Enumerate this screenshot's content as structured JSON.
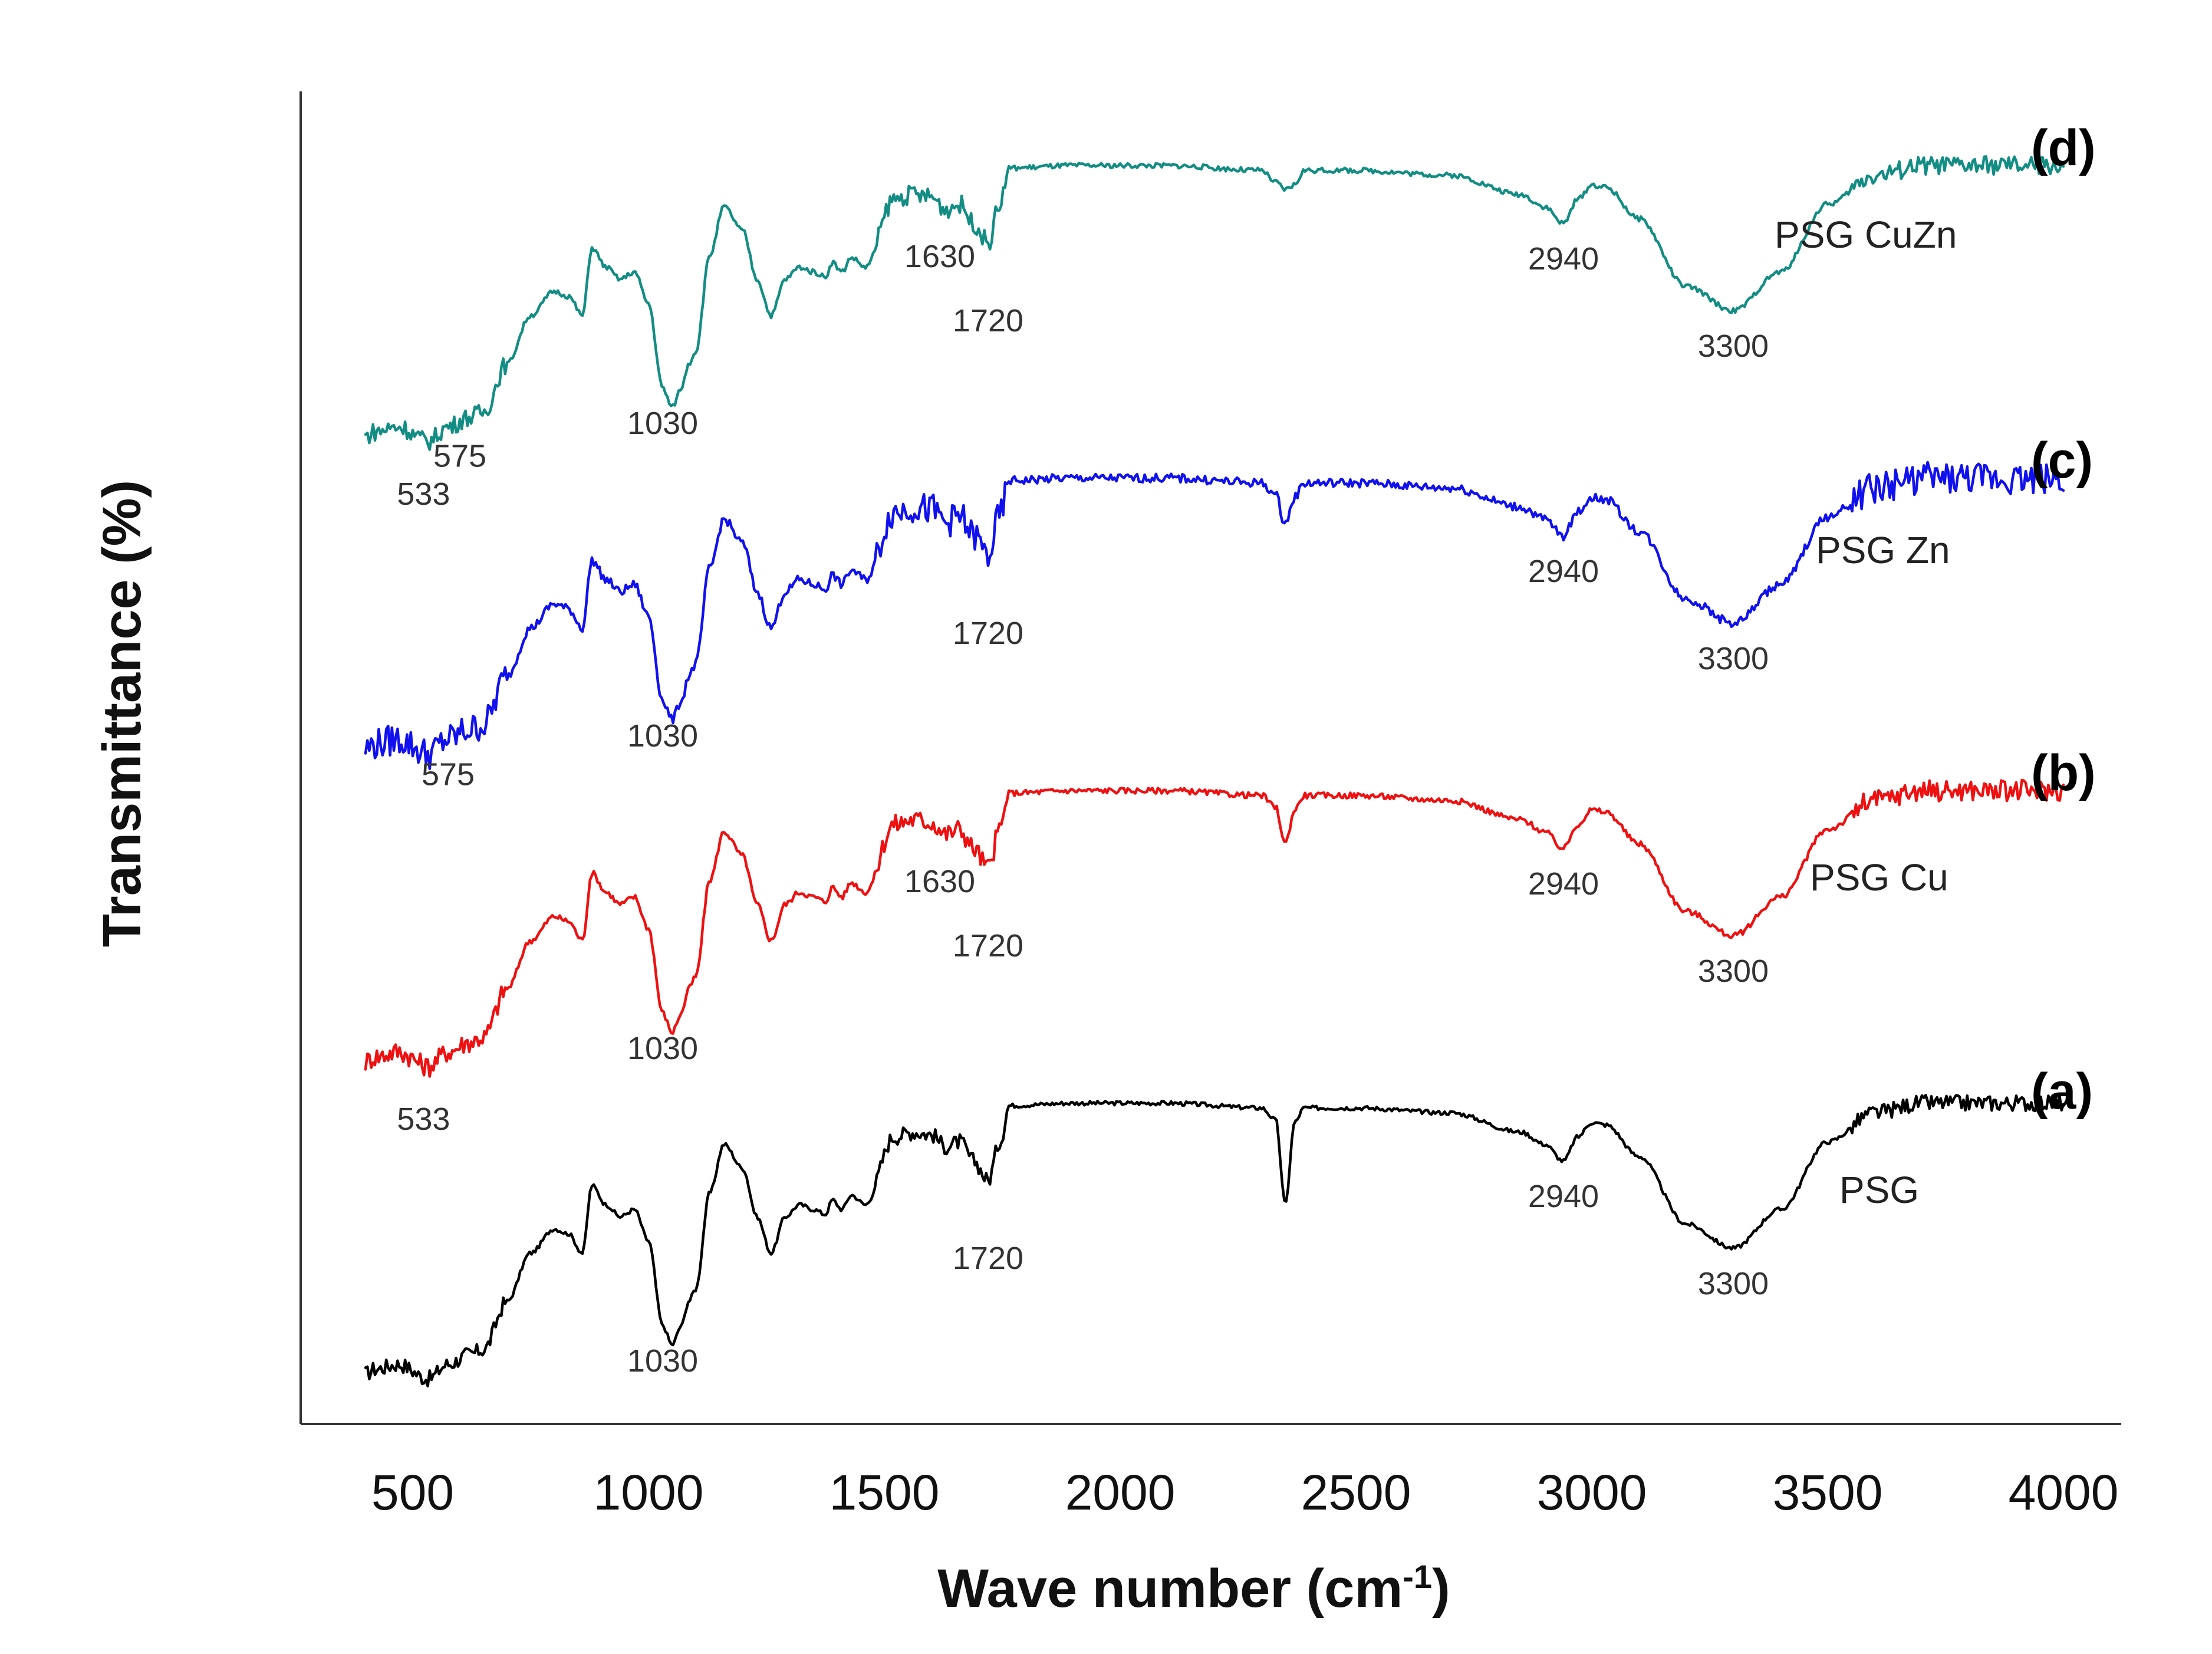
{
  "chart_data": {
    "type": "line",
    "title": "",
    "xlabel": "Wave number (cm",
    "xlabel_superscript": "-1",
    "xlabel_close": ")",
    "ylabel": "Transmittance (%)",
    "xlim": [
      250,
      4250
    ],
    "xticks": [
      500,
      1000,
      1500,
      2000,
      2500,
      3000,
      3500,
      4000
    ],
    "grid": false,
    "legend": "inline, right of each trace",
    "series": [
      {
        "id": "a",
        "letter": "(a)",
        "name": "PSG",
        "color": "#000000",
        "offset": 0,
        "noise": 3,
        "peaks": [
          {
            "x": 1030,
            "label": "1030"
          },
          {
            "x": 1720,
            "label": "1720"
          },
          {
            "x": 2940,
            "label": "2940"
          },
          {
            "x": 3300,
            "label": "3300"
          }
        ]
      },
      {
        "id": "b",
        "letter": "(b)",
        "name": "PSG Cu",
        "color": "#ee1111",
        "offset": 1,
        "noise": 4,
        "peaks": [
          {
            "x": 533,
            "label": "533"
          },
          {
            "x": 1030,
            "label": "1030"
          },
          {
            "x": 1630,
            "label": "1630"
          },
          {
            "x": 1720,
            "label": "1720"
          },
          {
            "x": 2940,
            "label": "2940"
          },
          {
            "x": 3300,
            "label": "3300"
          }
        ]
      },
      {
        "id": "c",
        "letter": "(c)",
        "name": "PSG Zn",
        "color": "#1111ee",
        "offset": 2,
        "noise": 6,
        "peaks": [
          {
            "x": 575,
            "label": "575"
          },
          {
            "x": 1030,
            "label": "1030"
          },
          {
            "x": 1720,
            "label": "1720"
          },
          {
            "x": 2940,
            "label": "2940"
          },
          {
            "x": 3300,
            "label": "3300"
          }
        ]
      },
      {
        "id": "d",
        "letter": "(d)",
        "name": "PSG CuZn",
        "color": "#138d84",
        "offset": 3,
        "noise": 3.5,
        "peaks": [
          {
            "x": 533,
            "label": "533"
          },
          {
            "x": 575,
            "label": "575"
          },
          {
            "x": 1030,
            "label": "1030"
          },
          {
            "x": 1630,
            "label": "1630"
          },
          {
            "x": 1720,
            "label": "1720"
          },
          {
            "x": 2940,
            "label": "2940"
          },
          {
            "x": 3300,
            "label": "3300"
          }
        ]
      }
    ]
  }
}
